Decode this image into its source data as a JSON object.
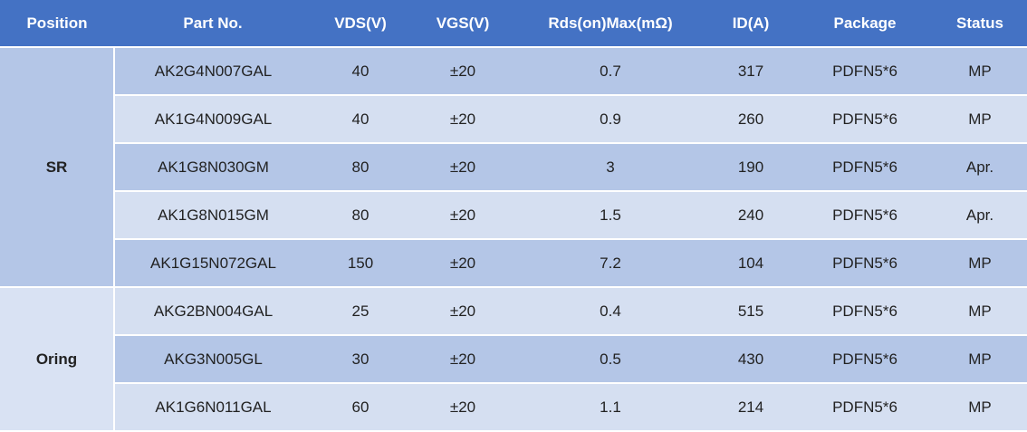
{
  "table": {
    "headers": [
      "Position",
      "Part No.",
      "VDS(V)",
      "VGS(V)",
      "Rds(on)Max(mΩ)",
      "ID(A)",
      "Package",
      "Status"
    ],
    "groups": [
      {
        "label": "SR",
        "rows": [
          [
            "AK2G4N007GAL",
            "40",
            "±20",
            "0.7",
            "317",
            "PDFN5*6",
            "MP"
          ],
          [
            "AK1G4N009GAL",
            "40",
            "±20",
            "0.9",
            "260",
            "PDFN5*6",
            "MP"
          ],
          [
            "AK1G8N030GM",
            "80",
            "±20",
            "3",
            "190",
            "PDFN5*6",
            "Apr."
          ],
          [
            "AK1G8N015GM",
            "80",
            "±20",
            "1.5",
            "240",
            "PDFN5*6",
            "Apr."
          ],
          [
            "AK1G15N072GAL",
            "150",
            "±20",
            "7.2",
            "104",
            "PDFN5*6",
            "MP"
          ]
        ]
      },
      {
        "label": "Oring",
        "rows": [
          [
            "AKG2BN004GAL",
            "25",
            "±20",
            "0.4",
            "515",
            "PDFN5*6",
            "MP"
          ],
          [
            "AKG3N005GL",
            "30",
            "±20",
            "0.5",
            "430",
            "PDFN5*6",
            "MP"
          ],
          [
            "AK1G6N011GAL",
            "60",
            "±20",
            "1.1",
            "214",
            "PDFN5*6",
            "MP"
          ]
        ]
      }
    ]
  }
}
